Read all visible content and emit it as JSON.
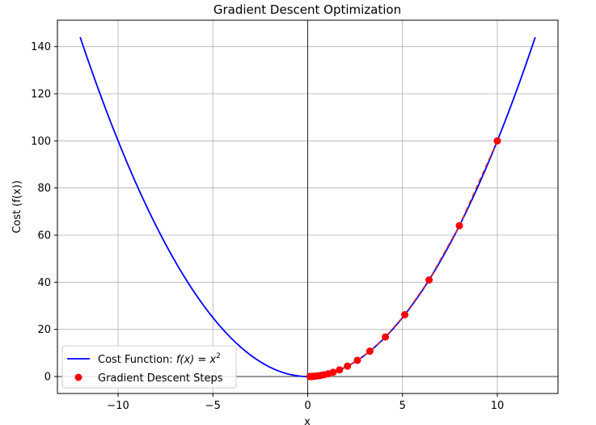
{
  "chart_data": {
    "type": "line",
    "title": "Gradient Descent Optimization",
    "xlabel": "x",
    "ylabel": "Cost (f(x))",
    "xlim": [
      -13.2,
      13.2
    ],
    "ylim": [
      -7.2,
      151.2
    ],
    "xticks": [
      -10,
      -5,
      0,
      5,
      10
    ],
    "yticks": [
      0,
      20,
      40,
      60,
      80,
      100,
      120,
      140
    ],
    "grid": true,
    "legend_position": "lower-left",
    "colors": {
      "curve": "#0000ff",
      "steps": "#ff0000",
      "path": "#d62728",
      "grid": "#b0b0b0"
    },
    "curve": {
      "name": "Cost Function: ",
      "math": "f(x) = x",
      "sup": "2",
      "x_range": [
        -12,
        12
      ]
    },
    "steps": {
      "name": "Gradient Descent Steps",
      "x": [
        10,
        8,
        6.4,
        5.12,
        4.096,
        3.2768,
        2.62144,
        2.097152,
        1.6777216,
        1.34217728,
        1.073741824,
        0.8589934592,
        0.6871947674,
        0.5497558139,
        0.4398046511,
        0.3518437209,
        0.2814749767,
        0.2251799814,
        0.1801439851,
        0.1441151881,
        0.1152921505
      ],
      "y": [
        100,
        64,
        40.96,
        26.2144,
        16.777216,
        10.73741824,
        6.8719476736,
        4.398046511,
        2.8147497671,
        1.8014398509,
        1.1529215046,
        0.7378697629,
        0.4722366483,
        0.3022314549,
        0.1934281311,
        0.1237940039,
        0.0792281625,
        0.050706024,
        0.0324518554,
        0.0207691874,
        0.0132922799
      ]
    }
  }
}
